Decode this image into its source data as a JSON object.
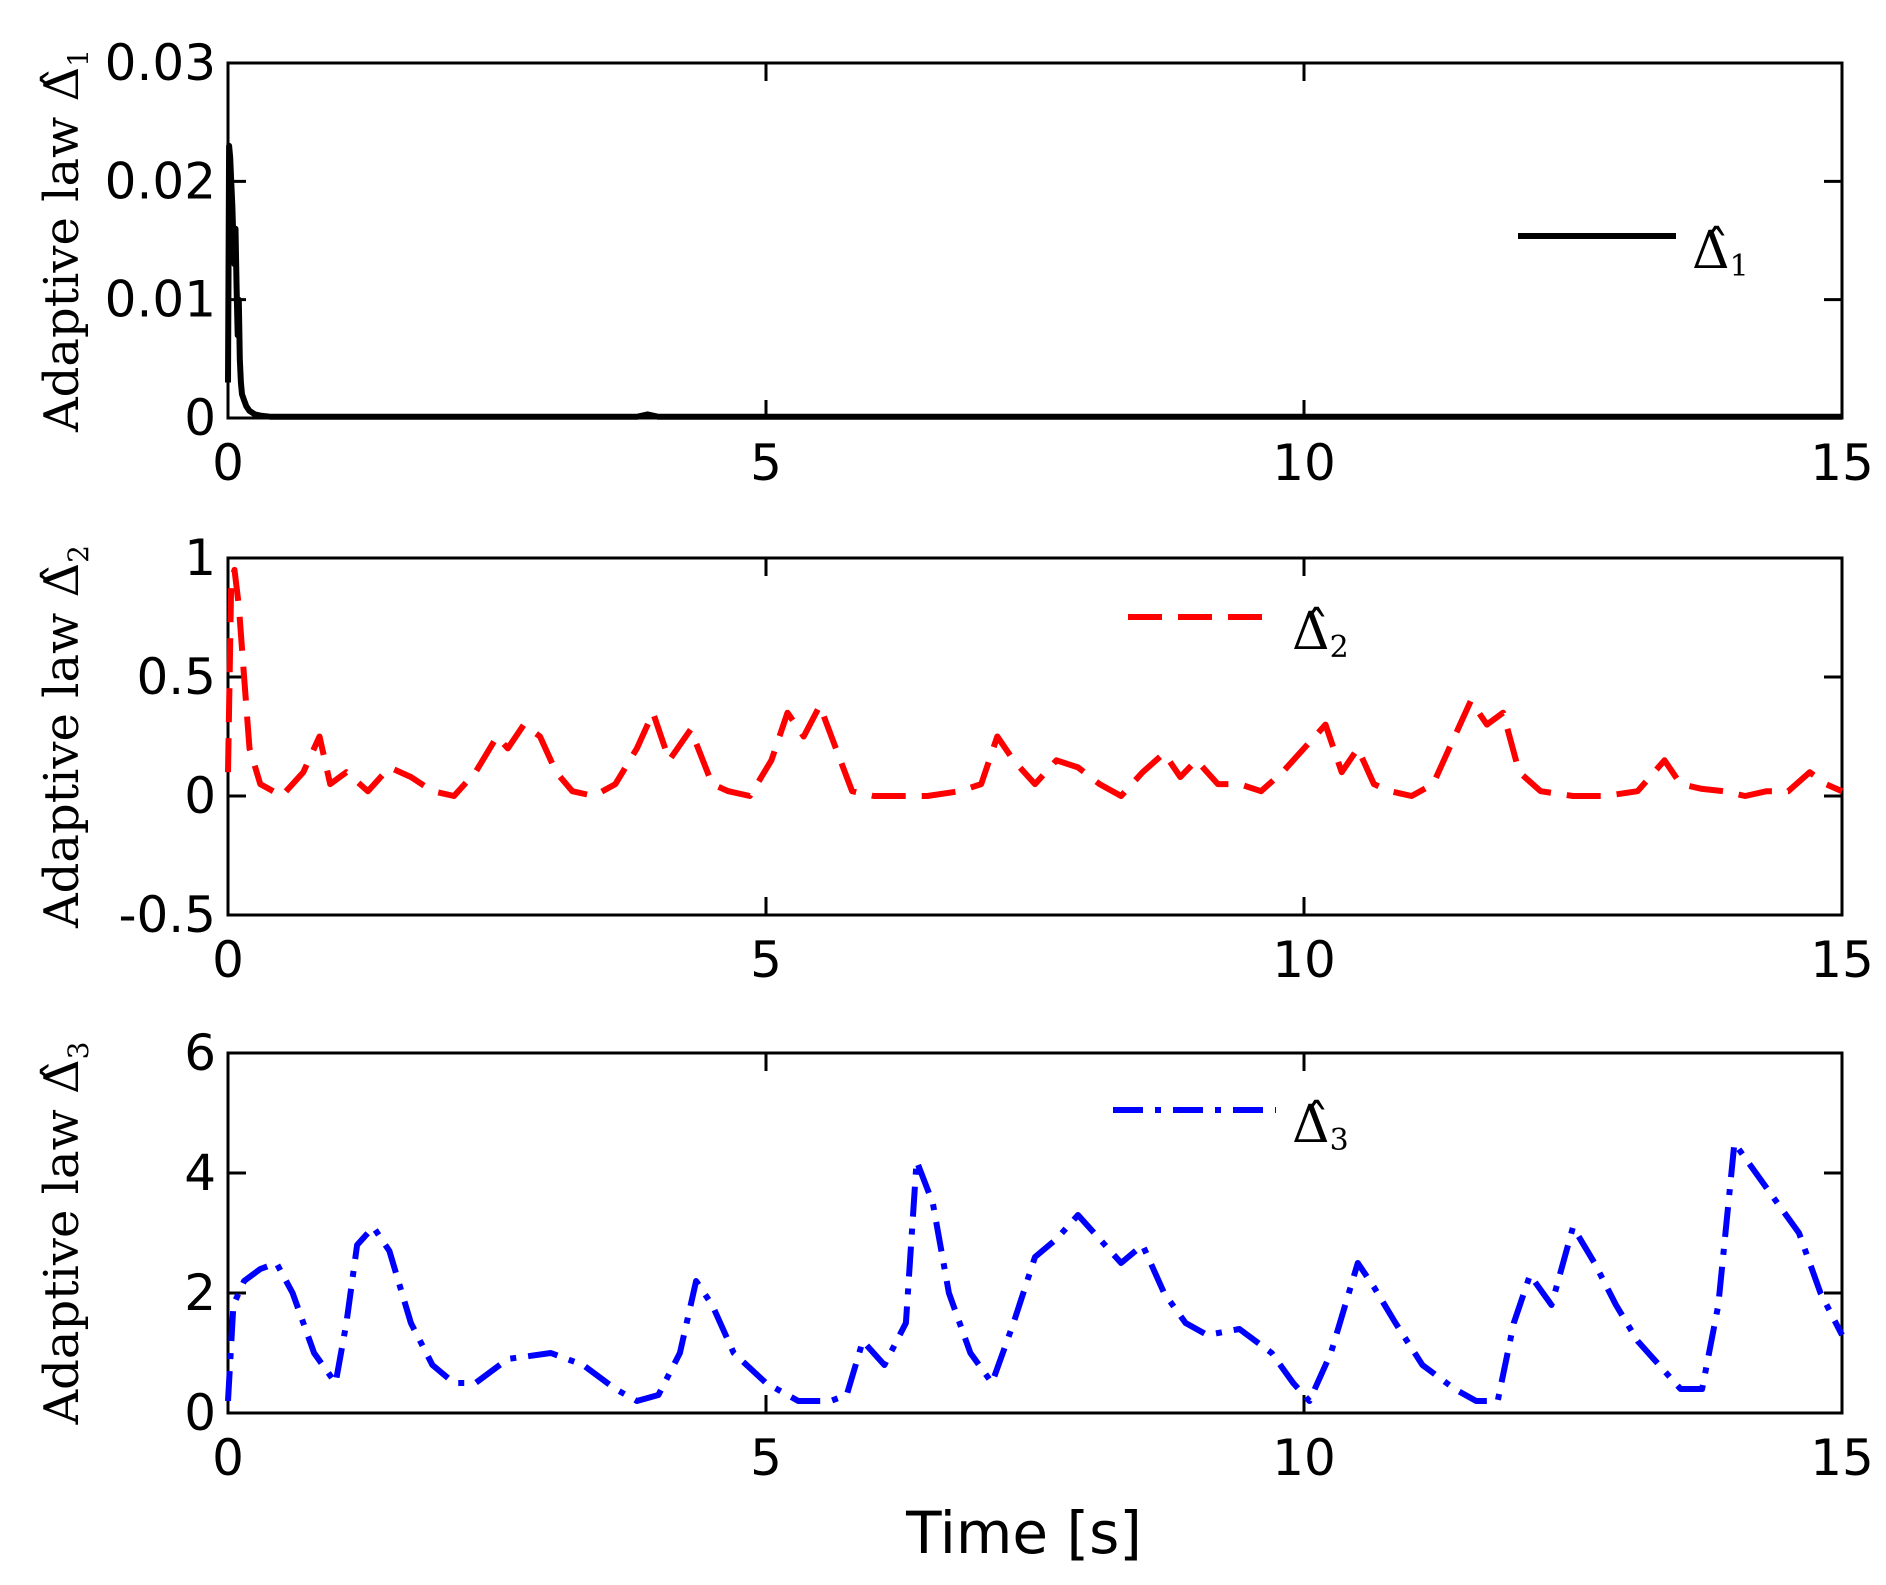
{
  "figure": {
    "xlabel": "Time [s]"
  },
  "chart_data": [
    {
      "type": "line",
      "ylabel_prefix": "Adaptive law ",
      "ylabel_symbol": "Δ̂",
      "ylabel_subscript": "1",
      "legend": {
        "symbol": "Δ̂",
        "subscript": "1",
        "placement": "top-right"
      },
      "color": "#000000",
      "dash": "solid",
      "xlim": [
        0,
        15
      ],
      "ylim": [
        0,
        0.03
      ],
      "xticks": [
        "0",
        "5",
        "10",
        "15"
      ],
      "yticks": [
        "0",
        "0.01",
        "0.02",
        "0.03"
      ],
      "x": [
        0,
        0.01,
        0.02,
        0.03,
        0.04,
        0.05,
        0.06,
        0.07,
        0.08,
        0.09,
        0.1,
        0.11,
        0.12,
        0.13,
        0.15,
        0.17,
        0.2,
        0.25,
        0.3,
        0.4,
        1,
        2,
        3,
        3.8,
        3.9,
        4,
        5,
        6,
        7,
        8,
        9,
        10,
        11,
        12,
        13,
        14,
        15
      ],
      "values": [
        0.003,
        0.023,
        0.022,
        0.02,
        0.018,
        0.015,
        0.013,
        0.016,
        0.011,
        0.007,
        0.01,
        0.005,
        0.003,
        0.002,
        0.0015,
        0.001,
        0.0006,
        0.0003,
        0.0002,
        0.0001,
        0.0001,
        0.0001,
        0.0001,
        0.0001,
        0.0003,
        0.0001,
        0.0001,
        0.0001,
        0.0001,
        0.0001,
        0.0001,
        0.0001,
        0.0001,
        0.0001,
        0.0001,
        0.0001,
        0.0001
      ]
    },
    {
      "type": "line",
      "ylabel_prefix": "Adaptive law ",
      "ylabel_symbol": "Δ̂",
      "ylabel_subscript": "2",
      "legend": {
        "symbol": "Δ̂",
        "subscript": "2",
        "placement": "top-center"
      },
      "color": "#ff0000",
      "dash": "dashed",
      "xlim": [
        0,
        15
      ],
      "ylim": [
        -0.5,
        1
      ],
      "xticks": [
        "0",
        "5",
        "10",
        "15"
      ],
      "yticks": [
        "-0.5",
        "0",
        "0.5",
        "1"
      ],
      "x": [
        0,
        0.03,
        0.06,
        0.1,
        0.15,
        0.2,
        0.3,
        0.5,
        0.7,
        0.85,
        0.95,
        1.1,
        1.3,
        1.5,
        1.7,
        1.9,
        2.1,
        2.3,
        2.5,
        2.6,
        2.75,
        2.9,
        3.05,
        3.2,
        3.4,
        3.6,
        3.8,
        3.95,
        4.1,
        4.3,
        4.5,
        4.65,
        4.85,
        5.05,
        5.2,
        5.35,
        5.5,
        5.65,
        5.8,
        6.0,
        6.2,
        6.5,
        6.8,
        7.0,
        7.15,
        7.3,
        7.5,
        7.7,
        7.9,
        8.1,
        8.3,
        8.5,
        8.7,
        8.85,
        9.0,
        9.2,
        9.4,
        9.6,
        9.8,
        10.0,
        10.2,
        10.35,
        10.5,
        10.65,
        10.8,
        11.0,
        11.2,
        11.4,
        11.55,
        11.7,
        11.85,
        12.0,
        12.2,
        12.5,
        12.8,
        13.1,
        13.35,
        13.5,
        13.7,
        13.9,
        14.1,
        14.3,
        14.5,
        14.7,
        14.85,
        15.0
      ],
      "values": [
        0.1,
        0.9,
        0.95,
        0.8,
        0.5,
        0.2,
        0.05,
        0.0,
        0.1,
        0.25,
        0.05,
        0.1,
        0.02,
        0.12,
        0.08,
        0.02,
        0.0,
        0.1,
        0.25,
        0.2,
        0.3,
        0.25,
        0.1,
        0.02,
        0.0,
        0.05,
        0.2,
        0.35,
        0.15,
        0.28,
        0.05,
        0.02,
        0.0,
        0.15,
        0.35,
        0.25,
        0.38,
        0.2,
        0.02,
        0.0,
        0.0,
        0.0,
        0.02,
        0.05,
        0.25,
        0.15,
        0.05,
        0.15,
        0.12,
        0.05,
        0.0,
        0.1,
        0.18,
        0.08,
        0.15,
        0.05,
        0.05,
        0.02,
        0.1,
        0.2,
        0.3,
        0.1,
        0.2,
        0.05,
        0.02,
        0.0,
        0.05,
        0.25,
        0.4,
        0.3,
        0.35,
        0.1,
        0.02,
        0.0,
        0.0,
        0.02,
        0.15,
        0.05,
        0.03,
        0.02,
        0.0,
        0.02,
        0.02,
        0.1,
        0.05,
        0.02
      ]
    },
    {
      "type": "line",
      "ylabel_prefix": "Adaptive law ",
      "ylabel_symbol": "Δ̂",
      "ylabel_subscript": "3",
      "legend": {
        "symbol": "Δ̂",
        "subscript": "3",
        "placement": "top-center"
      },
      "color": "#0000ff",
      "dash": "dashdot",
      "xlim": [
        0,
        15
      ],
      "ylim": [
        0,
        6
      ],
      "xticks": [
        "0",
        "5",
        "10",
        "15"
      ],
      "yticks": [
        "0",
        "2",
        "4",
        "6"
      ],
      "x": [
        0,
        0.05,
        0.15,
        0.3,
        0.45,
        0.6,
        0.8,
        1.0,
        1.1,
        1.2,
        1.35,
        1.5,
        1.7,
        1.9,
        2.1,
        2.3,
        2.6,
        3.0,
        3.3,
        3.6,
        3.8,
        4.0,
        4.2,
        4.35,
        4.5,
        4.7,
        5.0,
        5.3,
        5.6,
        5.75,
        5.9,
        6.1,
        6.3,
        6.4,
        6.55,
        6.7,
        6.9,
        7.1,
        7.3,
        7.5,
        7.7,
        7.9,
        8.1,
        8.3,
        8.5,
        8.7,
        8.9,
        9.1,
        9.4,
        9.7,
        9.9,
        10.05,
        10.25,
        10.5,
        10.65,
        10.85,
        11.1,
        11.4,
        11.6,
        11.8,
        11.95,
        12.1,
        12.3,
        12.5,
        12.7,
        12.9,
        13.1,
        13.3,
        13.5,
        13.7,
        13.85,
        14.0,
        14.2,
        14.4,
        14.6,
        14.8,
        15.0
      ],
      "values": [
        0.2,
        1.8,
        2.2,
        2.4,
        2.5,
        2.0,
        1.0,
        0.5,
        1.5,
        2.8,
        3.1,
        2.7,
        1.5,
        0.8,
        0.5,
        0.5,
        0.9,
        1.0,
        0.8,
        0.4,
        0.2,
        0.3,
        1.0,
        2.2,
        1.8,
        1.0,
        0.5,
        0.2,
        0.2,
        0.3,
        1.2,
        0.8,
        1.5,
        4.2,
        3.5,
        2.0,
        1.0,
        0.5,
        1.5,
        2.6,
        2.9,
        3.3,
        2.9,
        2.5,
        2.8,
        2.0,
        1.5,
        1.3,
        1.4,
        1.0,
        0.5,
        0.2,
        1.0,
        2.5,
        2.1,
        1.5,
        0.8,
        0.4,
        0.2,
        0.2,
        1.5,
        2.3,
        1.8,
        3.1,
        2.5,
        1.8,
        1.2,
        0.8,
        0.4,
        0.4,
        1.8,
        4.5,
        4.0,
        3.5,
        3.0,
        2.0,
        1.3
      ]
    }
  ]
}
